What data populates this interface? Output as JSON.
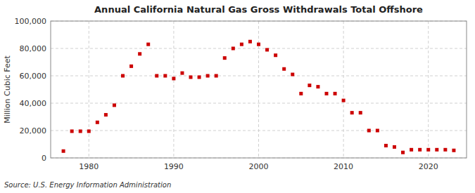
{
  "chart_data": {
    "type": "scatter",
    "title": "Annual California Natural Gas Gross Withdrawals Total Offshore",
    "y_label": "Million Cubic Feet",
    "annotations": [
      "Source: U.S. Energy Information Administration"
    ],
    "x": [
      1977,
      1978,
      1979,
      1980,
      1981,
      1982,
      1983,
      1984,
      1985,
      1986,
      1987,
      1988,
      1989,
      1990,
      1991,
      1992,
      1993,
      1994,
      1995,
      1996,
      1997,
      1998,
      1999,
      2000,
      2001,
      2002,
      2003,
      2004,
      2005,
      2006,
      2007,
      2008,
      2009,
      2010,
      2011,
      2012,
      2013,
      2014,
      2015,
      2016,
      2017,
      2018,
      2019,
      2020,
      2021,
      2022,
      2023
    ],
    "values": [
      5000,
      19500,
      19500,
      19500,
      26000,
      31500,
      38500,
      60000,
      67000,
      76000,
      83000,
      60000,
      60000,
      58000,
      62000,
      59000,
      59000,
      60000,
      60000,
      73000,
      80000,
      83000,
      85000,
      83000,
      79000,
      75000,
      65000,
      61000,
      47000,
      53000,
      52000,
      47000,
      47000,
      42000,
      33000,
      33000,
      20000,
      20000,
      9000,
      8000,
      4000,
      6000,
      6000,
      6000,
      6000,
      6000,
      5500
    ],
    "color": "#cc0000",
    "marker": "square",
    "xlim": [
      1975.5,
      2024.5
    ],
    "ylim": [
      0,
      100000
    ],
    "xticks": [
      1980,
      1990,
      2000,
      2010,
      2020
    ],
    "yticks": [
      0,
      {
        "value": 20000,
        "label": "20,000"
      },
      {
        "value": 40000,
        "label": "40,000"
      },
      {
        "value": 60000,
        "label": "60,000"
      },
      {
        "value": 80000,
        "label": "80,000"
      },
      {
        "value": 100000,
        "label": "100,000"
      }
    ],
    "grid": true
  }
}
